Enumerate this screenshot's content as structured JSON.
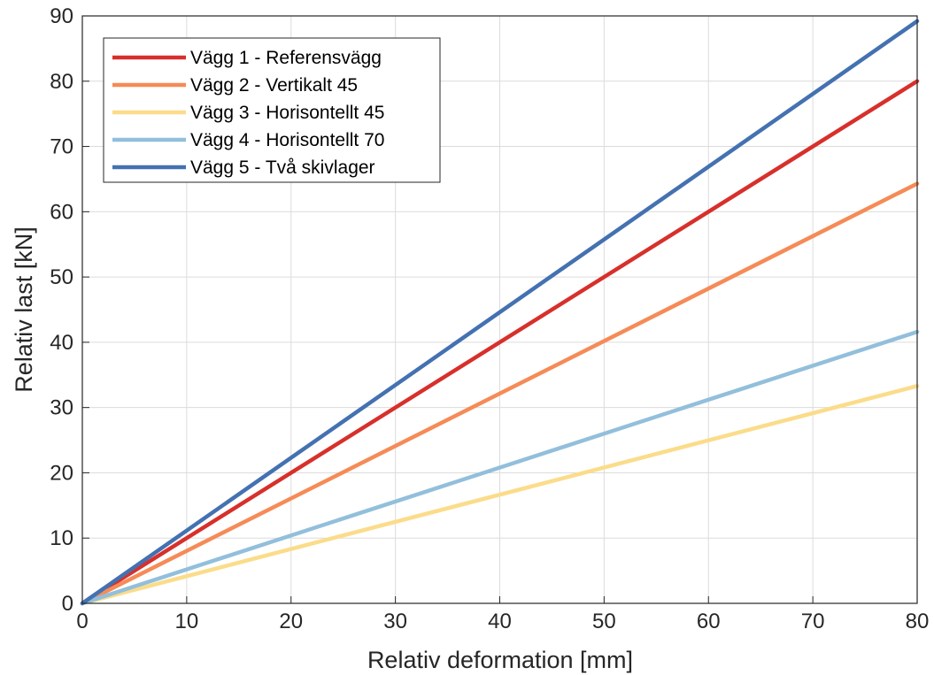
{
  "chart_data": {
    "type": "line",
    "title": "",
    "xlabel": "Relativ deformation [mm]",
    "ylabel": "Relativ last [kN]",
    "xlim": [
      0,
      80
    ],
    "ylim": [
      0,
      90
    ],
    "xticks": [
      0,
      10,
      20,
      30,
      40,
      50,
      60,
      70,
      80
    ],
    "yticks": [
      0,
      10,
      20,
      30,
      40,
      50,
      60,
      70,
      80,
      90
    ],
    "grid": true,
    "legend_position": "top-left",
    "series": [
      {
        "name": "Vägg 1 - Referensvägg",
        "color": "#d7302b",
        "x": [
          0,
          80
        ],
        "y": [
          0,
          80.0
        ]
      },
      {
        "name": "Vägg 2 - Vertikalt 45",
        "color": "#f58b57",
        "x": [
          0,
          80
        ],
        "y": [
          0,
          64.3
        ]
      },
      {
        "name": "Vägg 3 - Horisontellt 45",
        "color": "#fbdc8a",
        "x": [
          0,
          80
        ],
        "y": [
          0,
          33.3
        ]
      },
      {
        "name": "Vägg 4 - Horisontellt 70",
        "color": "#92bfdb",
        "x": [
          0,
          80
        ],
        "y": [
          0,
          41.6
        ]
      },
      {
        "name": "Vägg 5 - Två skivlager",
        "color": "#4471b1",
        "x": [
          0,
          80
        ],
        "y": [
          0,
          89.2
        ]
      }
    ]
  }
}
